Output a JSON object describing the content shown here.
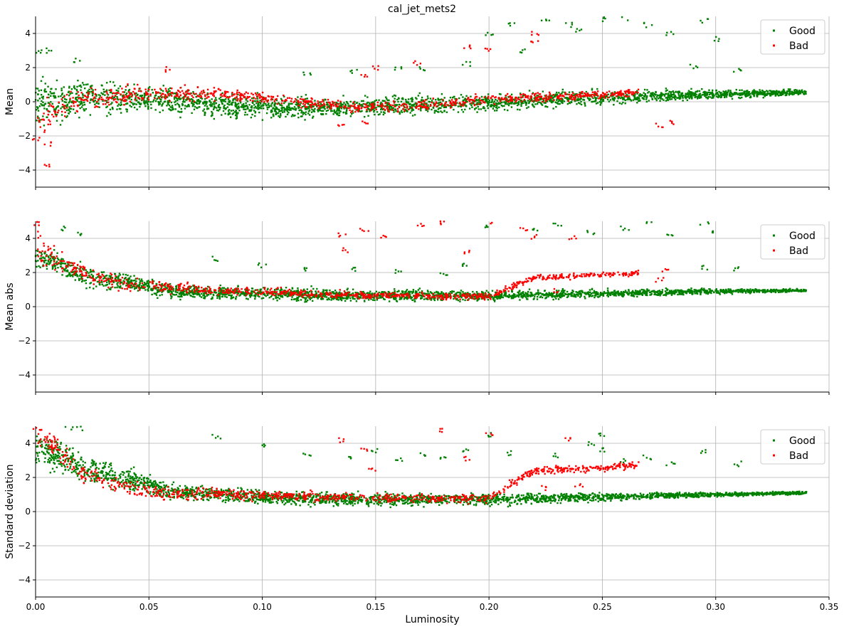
{
  "title": "cal_jet_mets2",
  "colors": {
    "good": "#008000",
    "bad": "#ff0000",
    "grid": "#b0b0b0"
  },
  "legend": {
    "placement": "top-right",
    "entries": [
      "Good",
      "Bad"
    ]
  },
  "chart_data": [
    {
      "type": "scatter",
      "title": "cal_jet_mets2",
      "ylabel": "Mean",
      "xlabel": "",
      "xlim": [
        0.0,
        0.35
      ],
      "ylim": [
        -5,
        5
      ],
      "x_ticks": [
        "0.00",
        "0.05",
        "0.10",
        "0.15",
        "0.20",
        "0.25",
        "0.30",
        "0.35"
      ],
      "y_ticks": [
        "-4",
        "-2",
        "0",
        "2",
        "4"
      ],
      "grid": true,
      "legend": "top-right",
      "series": [
        {
          "name": "Good",
          "color": "#008000",
          "trend": [
            [
              0.0,
              0.2
            ],
            [
              0.01,
              -0.2
            ],
            [
              0.02,
              0.3
            ],
            [
              0.05,
              0.1
            ],
            [
              0.1,
              -0.35
            ],
            [
              0.15,
              -0.3
            ],
            [
              0.2,
              -0.05
            ],
            [
              0.25,
              0.25
            ],
            [
              0.3,
              0.45
            ],
            [
              0.34,
              0.55
            ]
          ],
          "spread": [
            [
              0.0,
              1.2
            ],
            [
              0.02,
              1.0
            ],
            [
              0.05,
              0.7
            ],
            [
              0.1,
              0.55
            ],
            [
              0.2,
              0.45
            ],
            [
              0.3,
              0.25
            ],
            [
              0.34,
              0.15
            ]
          ],
          "outliers": [
            [
              0.002,
              2.9
            ],
            [
              0.005,
              3.0
            ],
            [
              0.018,
              2.4
            ],
            [
              0.2,
              4.0
            ],
            [
              0.21,
              4.6
            ],
            [
              0.225,
              4.9
            ],
            [
              0.235,
              4.5
            ],
            [
              0.24,
              4.2
            ],
            [
              0.25,
              4.8
            ],
            [
              0.26,
              4.9
            ],
            [
              0.27,
              4.5
            ],
            [
              0.28,
              4.0
            ],
            [
              0.295,
              4.7
            ],
            [
              0.3,
              3.7
            ],
            [
              0.215,
              3.0
            ],
            [
              0.19,
              2.2
            ],
            [
              0.17,
              1.9
            ],
            [
              0.16,
              2.0
            ],
            [
              0.14,
              1.8
            ],
            [
              0.12,
              1.6
            ],
            [
              0.31,
              1.9
            ],
            [
              0.29,
              2.1
            ]
          ]
        },
        {
          "name": "Bad",
          "color": "#ff0000",
          "trend": [
            [
              0.001,
              -1.0
            ],
            [
              0.006,
              -0.7
            ],
            [
              0.02,
              0.2
            ],
            [
              0.04,
              0.4
            ],
            [
              0.08,
              0.5
            ],
            [
              0.14,
              -0.3
            ],
            [
              0.17,
              -0.2
            ],
            [
              0.2,
              0.15
            ],
            [
              0.24,
              0.35
            ],
            [
              0.266,
              0.55
            ]
          ],
          "spread": [
            [
              0.0,
              0.8
            ],
            [
              0.05,
              0.4
            ],
            [
              0.1,
              0.3
            ],
            [
              0.2,
              0.25
            ],
            [
              0.266,
              0.2
            ]
          ],
          "outliers": [
            [
              0.006,
              -2.5
            ],
            [
              0.006,
              -3.8
            ],
            [
              0.0,
              -2.2
            ],
            [
              0.145,
              1.6
            ],
            [
              0.15,
              2.0
            ],
            [
              0.145,
              -1.3
            ],
            [
              0.168,
              2.3
            ],
            [
              0.19,
              3.2
            ],
            [
              0.2,
              3.0
            ],
            [
              0.22,
              3.5
            ],
            [
              0.22,
              4.0
            ],
            [
              0.275,
              -1.4
            ],
            [
              0.28,
              -1.2
            ],
            [
              0.058,
              1.9
            ],
            [
              0.135,
              -1.4
            ]
          ]
        }
      ]
    },
    {
      "type": "scatter",
      "ylabel": "Mean abs",
      "xlabel": "",
      "xlim": [
        0.0,
        0.35
      ],
      "ylim": [
        -5,
        5
      ],
      "x_ticks": [
        "0.00",
        "0.05",
        "0.10",
        "0.15",
        "0.20",
        "0.25",
        "0.30",
        "0.35"
      ],
      "y_ticks": [
        "-4",
        "-2",
        "0",
        "2",
        "4"
      ],
      "grid": true,
      "legend": "top-right",
      "series": [
        {
          "name": "Good",
          "color": "#008000",
          "trend": [
            [
              0.0,
              3.0
            ],
            [
              0.01,
              2.5
            ],
            [
              0.02,
              1.8
            ],
            [
              0.04,
              1.4
            ],
            [
              0.06,
              0.9
            ],
            [
              0.1,
              0.75
            ],
            [
              0.15,
              0.65
            ],
            [
              0.2,
              0.65
            ],
            [
              0.25,
              0.75
            ],
            [
              0.3,
              0.9
            ],
            [
              0.34,
              0.95
            ]
          ],
          "spread": [
            [
              0.0,
              0.6
            ],
            [
              0.03,
              0.5
            ],
            [
              0.06,
              0.35
            ],
            [
              0.15,
              0.3
            ],
            [
              0.3,
              0.15
            ],
            [
              0.34,
              0.08
            ]
          ],
          "outliers": [
            [
              0.02,
              4.2
            ],
            [
              0.012,
              4.6
            ],
            [
              0.08,
              2.8
            ],
            [
              0.1,
              2.4
            ],
            [
              0.12,
              2.2
            ],
            [
              0.2,
              4.7
            ],
            [
              0.22,
              4.5
            ],
            [
              0.23,
              4.8
            ],
            [
              0.245,
              4.3
            ],
            [
              0.26,
              4.6
            ],
            [
              0.27,
              4.9
            ],
            [
              0.28,
              4.2
            ],
            [
              0.3,
              4.4
            ],
            [
              0.295,
              4.9
            ],
            [
              0.295,
              2.3
            ],
            [
              0.31,
              2.2
            ],
            [
              0.18,
              2.0
            ],
            [
              0.16,
              2.1
            ],
            [
              0.14,
              2.2
            ],
            [
              0.19,
              2.4
            ]
          ]
        },
        {
          "name": "Bad",
          "color": "#ff0000",
          "trend": [
            [
              0.001,
              3.6
            ],
            [
              0.005,
              3.2
            ],
            [
              0.02,
              2.0
            ],
            [
              0.04,
              1.3
            ],
            [
              0.08,
              0.95
            ],
            [
              0.15,
              0.65
            ],
            [
              0.2,
              0.6
            ],
            [
              0.22,
              1.7
            ],
            [
              0.25,
              1.85
            ],
            [
              0.266,
              1.95
            ]
          ],
          "spread": [
            [
              0.0,
              0.9
            ],
            [
              0.02,
              0.4
            ],
            [
              0.1,
              0.2
            ],
            [
              0.266,
              0.15
            ]
          ],
          "outliers": [
            [
              0.001,
              4.9
            ],
            [
              0.135,
              4.2
            ],
            [
              0.145,
              4.5
            ],
            [
              0.153,
              4.1
            ],
            [
              0.17,
              4.8
            ],
            [
              0.18,
              4.9
            ],
            [
              0.2,
              5.0
            ],
            [
              0.215,
              4.6
            ],
            [
              0.22,
              4.1
            ],
            [
              0.237,
              4.0
            ],
            [
              0.136,
              3.3
            ],
            [
              0.19,
              3.2
            ],
            [
              0.278,
              2.1
            ],
            [
              0.275,
              1.6
            ],
            [
              0.23,
              0.9
            ]
          ]
        }
      ]
    },
    {
      "type": "scatter",
      "ylabel": "Standard deviation",
      "xlabel": "Luminosity",
      "xlim": [
        0.0,
        0.35
      ],
      "ylim": [
        -5,
        5
      ],
      "x_ticks": [
        "0.00",
        "0.05",
        "0.10",
        "0.15",
        "0.20",
        "0.25",
        "0.30",
        "0.35"
      ],
      "y_ticks": [
        "-4",
        "-2",
        "0",
        "2",
        "4"
      ],
      "grid": true,
      "legend": "top-right",
      "series": [
        {
          "name": "Good",
          "color": "#008000",
          "trend": [
            [
              0.0,
              3.6
            ],
            [
              0.01,
              3.2
            ],
            [
              0.02,
              2.6
            ],
            [
              0.04,
              1.9
            ],
            [
              0.06,
              1.2
            ],
            [
              0.1,
              0.85
            ],
            [
              0.15,
              0.7
            ],
            [
              0.2,
              0.72
            ],
            [
              0.25,
              0.85
            ],
            [
              0.3,
              1.0
            ],
            [
              0.34,
              1.1
            ]
          ],
          "spread": [
            [
              0.0,
              0.9
            ],
            [
              0.03,
              0.7
            ],
            [
              0.06,
              0.45
            ],
            [
              0.1,
              0.35
            ],
            [
              0.2,
              0.3
            ],
            [
              0.3,
              0.12
            ],
            [
              0.34,
              0.08
            ]
          ],
          "outliers": [
            [
              0.015,
              4.9
            ],
            [
              0.02,
              4.9
            ],
            [
              0.08,
              4.4
            ],
            [
              0.1,
              3.8
            ],
            [
              0.12,
              3.4
            ],
            [
              0.14,
              3.2
            ],
            [
              0.15,
              3.6
            ],
            [
              0.16,
              3.0
            ],
            [
              0.17,
              3.4
            ],
            [
              0.18,
              3.2
            ],
            [
              0.19,
              3.6
            ],
            [
              0.21,
              3.4
            ],
            [
              0.23,
              3.3
            ],
            [
              0.25,
              3.6
            ],
            [
              0.26,
              3.0
            ],
            [
              0.27,
              3.2
            ],
            [
              0.28,
              2.8
            ],
            [
              0.295,
              3.5
            ],
            [
              0.31,
              2.8
            ],
            [
              0.2,
              4.5
            ],
            [
              0.25,
              4.5
            ],
            [
              0.245,
              4.0
            ]
          ]
        },
        {
          "name": "Bad",
          "color": "#ff0000",
          "trend": [
            [
              0.001,
              4.4
            ],
            [
              0.006,
              4.0
            ],
            [
              0.02,
              2.2
            ],
            [
              0.04,
              1.5
            ],
            [
              0.06,
              1.0
            ],
            [
              0.08,
              1.05
            ],
            [
              0.15,
              0.8
            ],
            [
              0.2,
              0.75
            ],
            [
              0.22,
              2.4
            ],
            [
              0.25,
              2.55
            ],
            [
              0.266,
              2.75
            ]
          ],
          "spread": [
            [
              0.0,
              0.7
            ],
            [
              0.03,
              0.5
            ],
            [
              0.1,
              0.25
            ],
            [
              0.266,
              0.2
            ]
          ],
          "outliers": [
            [
              0.001,
              4.9
            ],
            [
              0.18,
              4.8
            ],
            [
              0.2,
              4.5
            ],
            [
              0.135,
              4.2
            ],
            [
              0.235,
              4.2
            ],
            [
              0.145,
              3.6
            ],
            [
              0.19,
              3.1
            ],
            [
              0.21,
              1.8
            ],
            [
              0.24,
              1.6
            ],
            [
              0.225,
              1.4
            ],
            [
              0.148,
              2.4
            ]
          ]
        }
      ]
    }
  ]
}
